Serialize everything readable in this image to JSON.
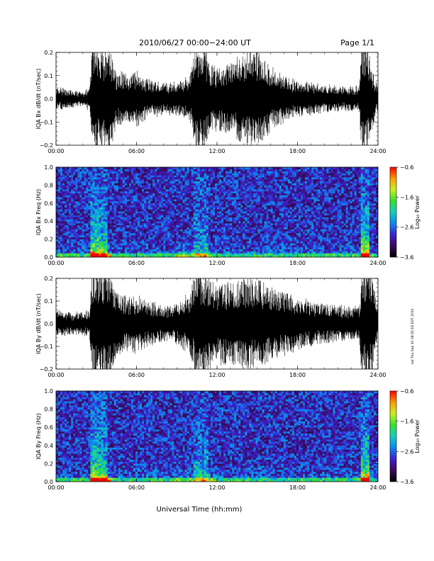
{
  "header": {
    "title": "2010/06/27  00:00−24:00 UT",
    "page": "Page 1/1"
  },
  "side_note": "sat Thu Sep 30 08:50:18 EDT 2010",
  "colorbar_label": "Log₁₀ Power",
  "chart_data": [
    {
      "type": "line",
      "name": "bx-dbdt",
      "ylabel": "IQA Bx dB/dt (nT/sec)",
      "xlabel": "",
      "xlim": [
        0,
        24
      ],
      "ylim": [
        -0.2,
        0.2
      ],
      "x_ticks": [
        "00:00",
        "06:00",
        "12:00",
        "18:00",
        "24:00"
      ],
      "y_ticks": [
        "−0.2",
        "−0.1",
        "0.0",
        "0.1",
        "0.2"
      ],
      "y_tick_values": [
        -0.2,
        -0.1,
        0.0,
        0.1,
        0.2
      ],
      "envelope_hours": [
        0,
        1,
        2,
        2.5,
        2.7,
        3,
        3.5,
        4,
        4.5,
        5,
        5.5,
        6,
        6.5,
        7,
        8,
        9,
        10,
        10.5,
        11,
        11.5,
        12,
        13,
        14,
        15,
        16,
        17,
        18,
        19,
        20,
        21,
        22,
        22.6,
        22.8,
        23.2,
        23.5,
        24
      ],
      "envelope_amplitude": [
        0.05,
        0.04,
        0.03,
        0.05,
        0.25,
        0.25,
        0.22,
        0.25,
        0.12,
        0.12,
        0.1,
        0.12,
        0.1,
        0.08,
        0.07,
        0.07,
        0.1,
        0.25,
        0.25,
        0.15,
        0.14,
        0.16,
        0.2,
        0.22,
        0.14,
        0.1,
        0.08,
        0.07,
        0.06,
        0.06,
        0.05,
        0.06,
        0.25,
        0.25,
        0.15,
        0.05
      ]
    },
    {
      "type": "heatmap",
      "name": "bx-spectrogram",
      "ylabel": "IQA Bx Freq (Hz)",
      "xlabel": "",
      "xlim": [
        0,
        24
      ],
      "ylim": [
        0.0,
        1.0
      ],
      "x_ticks": [
        "00:00",
        "06:00",
        "12:00",
        "18:00",
        "24:00"
      ],
      "y_ticks": [
        "0.0",
        "0.2",
        "0.4",
        "0.6",
        "0.8",
        "1.0"
      ],
      "y_tick_values": [
        0.0,
        0.2,
        0.4,
        0.6,
        0.8,
        1.0
      ],
      "color_range": [
        -3.6,
        -0.6
      ],
      "colorbar_ticks": [
        "−0.6",
        "−1.6",
        "−2.6",
        "−3.6"
      ],
      "colorbar_tick_values": [
        -0.6,
        -1.6,
        -2.6,
        -3.6
      ]
    },
    {
      "type": "line",
      "name": "by-dbdt",
      "ylabel": "IQA By dB/dt (nT/sec)",
      "xlabel": "",
      "xlim": [
        0,
        24
      ],
      "ylim": [
        -0.2,
        0.2
      ],
      "x_ticks": [
        "00:00",
        "06:00",
        "12:00",
        "18:00",
        "24:00"
      ],
      "y_ticks": [
        "−0.2",
        "−0.1",
        "0.0",
        "0.1",
        "0.2"
      ],
      "y_tick_values": [
        -0.2,
        -0.1,
        0.0,
        0.1,
        0.2
      ],
      "envelope_hours": [
        0,
        1,
        2,
        2.5,
        2.7,
        3,
        3.5,
        4,
        4.5,
        5,
        5.5,
        6,
        6.5,
        7,
        8,
        9,
        10,
        10.5,
        11,
        11.5,
        12,
        13,
        14,
        15,
        16,
        17,
        18,
        19,
        20,
        21,
        22,
        22.6,
        22.8,
        23.2,
        23.5,
        24
      ],
      "envelope_amplitude": [
        0.06,
        0.05,
        0.05,
        0.06,
        0.25,
        0.25,
        0.25,
        0.25,
        0.14,
        0.13,
        0.12,
        0.13,
        0.11,
        0.1,
        0.08,
        0.09,
        0.14,
        0.25,
        0.25,
        0.2,
        0.18,
        0.18,
        0.2,
        0.2,
        0.16,
        0.14,
        0.12,
        0.1,
        0.09,
        0.08,
        0.07,
        0.08,
        0.25,
        0.25,
        0.25,
        0.07
      ]
    },
    {
      "type": "heatmap",
      "name": "by-spectrogram",
      "ylabel": "IQA By Freq (Hz)",
      "xlabel": "Universal Time (hh:mm)",
      "xlim": [
        0,
        24
      ],
      "ylim": [
        0.0,
        1.0
      ],
      "x_ticks": [
        "00:00",
        "06:00",
        "12:00",
        "18:00",
        "24:00"
      ],
      "y_ticks": [
        "0.0",
        "0.2",
        "0.4",
        "0.6",
        "0.8",
        "1.0"
      ],
      "y_tick_values": [
        0.0,
        0.2,
        0.4,
        0.6,
        0.8,
        1.0
      ],
      "color_range": [
        -3.6,
        -0.6
      ],
      "colorbar_ticks": [
        "−0.6",
        "−1.6",
        "−2.6",
        "−3.6"
      ],
      "colorbar_tick_values": [
        -0.6,
        -1.6,
        -2.6,
        -3.6
      ]
    }
  ]
}
